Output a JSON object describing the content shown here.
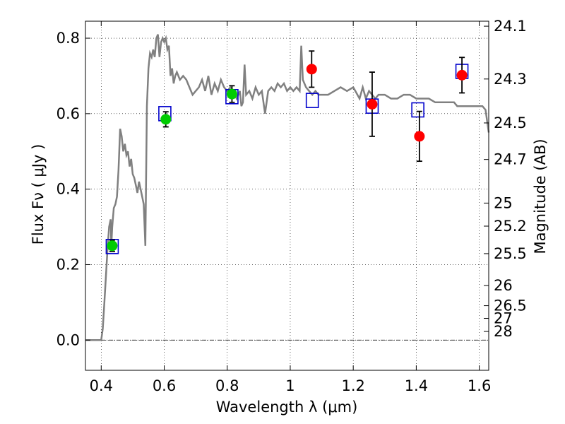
{
  "chart_data": {
    "type": "scatter",
    "xlabel": "Wavelength  λ (μm)",
    "ylabel": "Flux  Fν  ( μJy )",
    "ylabel_right": "Magnitude (AB)",
    "xlim": [
      0.35,
      1.63
    ],
    "ylim": [
      -0.08,
      0.845
    ],
    "x_ticks": [
      0.4,
      0.6,
      0.8,
      1.0,
      1.2,
      1.4,
      1.6
    ],
    "x_tick_labels": [
      "0.4",
      "0.6",
      "0.8",
      "1",
      "1.2",
      "1.4",
      "1.6"
    ],
    "y_ticks": [
      0.0,
      0.2,
      0.4,
      0.6,
      0.8
    ],
    "y_tick_labels": [
      "0.0",
      "0.2",
      "0.4",
      "0.6",
      "0.8"
    ],
    "right_ticks": [
      {
        "label": "24.1",
        "mag": 24.1
      },
      {
        "label": "24.3",
        "mag": 24.3
      },
      {
        "label": "24.5",
        "mag": 24.5
      },
      {
        "label": "24.7",
        "mag": 24.7
      },
      {
        "label": "25",
        "mag": 25.0
      },
      {
        "label": "25.2",
        "mag": 25.2
      },
      {
        "label": "25.5",
        "mag": 25.5
      },
      {
        "label": "26",
        "mag": 26.0
      },
      {
        "label": "26.5",
        "mag": 26.5
      },
      {
        "label": "27",
        "mag": 27.0
      },
      {
        "label": "28",
        "mag": 28.0
      }
    ],
    "grid": true,
    "zero_line": true,
    "colors": {
      "model": "#808080",
      "green_points": "#00cc00",
      "red_points": "#ff0000",
      "model_boxes": "#0000cc",
      "errorbar": "#000000"
    },
    "series": [
      {
        "kind": "line",
        "points": [
          [
            0.35,
            0.0
          ],
          [
            0.4,
            0.0
          ],
          [
            0.405,
            0.03
          ],
          [
            0.41,
            0.1
          ],
          [
            0.415,
            0.17
          ],
          [
            0.42,
            0.24
          ],
          [
            0.425,
            0.3
          ],
          [
            0.43,
            0.32
          ],
          [
            0.432,
            0.25
          ],
          [
            0.435,
            0.3
          ],
          [
            0.44,
            0.35
          ],
          [
            0.445,
            0.36
          ],
          [
            0.45,
            0.38
          ],
          [
            0.455,
            0.45
          ],
          [
            0.46,
            0.56
          ],
          [
            0.465,
            0.54
          ],
          [
            0.47,
            0.5
          ],
          [
            0.475,
            0.52
          ],
          [
            0.48,
            0.49
          ],
          [
            0.485,
            0.5
          ],
          [
            0.49,
            0.46
          ],
          [
            0.495,
            0.48
          ],
          [
            0.5,
            0.44
          ],
          [
            0.505,
            0.43
          ],
          [
            0.51,
            0.41
          ],
          [
            0.515,
            0.39
          ],
          [
            0.52,
            0.42
          ],
          [
            0.525,
            0.4
          ],
          [
            0.53,
            0.38
          ],
          [
            0.535,
            0.36
          ],
          [
            0.54,
            0.25
          ],
          [
            0.545,
            0.62
          ],
          [
            0.55,
            0.72
          ],
          [
            0.555,
            0.76
          ],
          [
            0.56,
            0.75
          ],
          [
            0.565,
            0.77
          ],
          [
            0.57,
            0.75
          ],
          [
            0.575,
            0.8
          ],
          [
            0.58,
            0.81
          ],
          [
            0.585,
            0.75
          ],
          [
            0.59,
            0.79
          ],
          [
            0.595,
            0.8
          ],
          [
            0.6,
            0.79
          ],
          [
            0.605,
            0.8
          ],
          [
            0.61,
            0.77
          ],
          [
            0.615,
            0.78
          ],
          [
            0.62,
            0.7
          ],
          [
            0.625,
            0.72
          ],
          [
            0.63,
            0.68
          ],
          [
            0.635,
            0.7
          ],
          [
            0.64,
            0.71
          ],
          [
            0.65,
            0.69
          ],
          [
            0.66,
            0.7
          ],
          [
            0.67,
            0.69
          ],
          [
            0.68,
            0.67
          ],
          [
            0.69,
            0.65
          ],
          [
            0.7,
            0.66
          ],
          [
            0.71,
            0.67
          ],
          [
            0.72,
            0.69
          ],
          [
            0.73,
            0.66
          ],
          [
            0.74,
            0.7
          ],
          [
            0.75,
            0.65
          ],
          [
            0.76,
            0.68
          ],
          [
            0.77,
            0.66
          ],
          [
            0.78,
            0.69
          ],
          [
            0.79,
            0.67
          ],
          [
            0.8,
            0.66
          ],
          [
            0.81,
            0.67
          ],
          [
            0.82,
            0.66
          ],
          [
            0.83,
            0.64
          ],
          [
            0.84,
            0.66
          ],
          [
            0.845,
            0.62
          ],
          [
            0.85,
            0.63
          ],
          [
            0.855,
            0.73
          ],
          [
            0.86,
            0.65
          ],
          [
            0.87,
            0.66
          ],
          [
            0.88,
            0.64
          ],
          [
            0.89,
            0.67
          ],
          [
            0.9,
            0.65
          ],
          [
            0.91,
            0.66
          ],
          [
            0.92,
            0.6
          ],
          [
            0.93,
            0.66
          ],
          [
            0.94,
            0.67
          ],
          [
            0.95,
            0.66
          ],
          [
            0.96,
            0.68
          ],
          [
            0.97,
            0.67
          ],
          [
            0.98,
            0.68
          ],
          [
            0.99,
            0.66
          ],
          [
            1.0,
            0.67
          ],
          [
            1.01,
            0.66
          ],
          [
            1.02,
            0.67
          ],
          [
            1.03,
            0.66
          ],
          [
            1.035,
            0.78
          ],
          [
            1.04,
            0.69
          ],
          [
            1.05,
            0.67
          ],
          [
            1.06,
            0.66
          ],
          [
            1.07,
            0.65
          ],
          [
            1.08,
            0.66
          ],
          [
            1.09,
            0.65
          ],
          [
            1.1,
            0.65
          ],
          [
            1.12,
            0.65
          ],
          [
            1.14,
            0.66
          ],
          [
            1.16,
            0.67
          ],
          [
            1.18,
            0.66
          ],
          [
            1.2,
            0.67
          ],
          [
            1.22,
            0.64
          ],
          [
            1.23,
            0.67
          ],
          [
            1.24,
            0.64
          ],
          [
            1.25,
            0.66
          ],
          [
            1.26,
            0.65
          ],
          [
            1.27,
            0.64
          ],
          [
            1.28,
            0.65
          ],
          [
            1.3,
            0.65
          ],
          [
            1.32,
            0.64
          ],
          [
            1.34,
            0.64
          ],
          [
            1.36,
            0.65
          ],
          [
            1.38,
            0.65
          ],
          [
            1.4,
            0.64
          ],
          [
            1.42,
            0.64
          ],
          [
            1.44,
            0.64
          ],
          [
            1.46,
            0.63
          ],
          [
            1.48,
            0.63
          ],
          [
            1.5,
            0.63
          ],
          [
            1.52,
            0.63
          ],
          [
            1.53,
            0.62
          ],
          [
            1.55,
            0.62
          ],
          [
            1.57,
            0.62
          ],
          [
            1.59,
            0.62
          ],
          [
            1.61,
            0.62
          ],
          [
            1.62,
            0.61
          ],
          [
            1.63,
            0.55
          ]
        ]
      },
      {
        "kind": "box",
        "points": [
          [
            0.435,
            0.248
          ],
          [
            0.602,
            0.6
          ],
          [
            0.815,
            0.645
          ],
          [
            1.07,
            0.635
          ],
          [
            1.26,
            0.62
          ],
          [
            1.405,
            0.61
          ],
          [
            1.545,
            0.712
          ]
        ]
      },
      {
        "kind": "point",
        "color": "green",
        "points": [
          {
            "x": 0.435,
            "y": 0.25,
            "err": 0.015
          },
          {
            "x": 0.605,
            "y": 0.585,
            "err": 0.02
          },
          {
            "x": 0.815,
            "y": 0.652,
            "err": 0.022
          }
        ]
      },
      {
        "kind": "point",
        "color": "red",
        "points": [
          {
            "x": 1.068,
            "y": 0.718,
            "err": 0.048
          },
          {
            "x": 1.26,
            "y": 0.625,
            "err": 0.085
          },
          {
            "x": 1.41,
            "y": 0.54,
            "err": 0.066
          },
          {
            "x": 1.545,
            "y": 0.702,
            "err": 0.047
          }
        ]
      }
    ]
  }
}
